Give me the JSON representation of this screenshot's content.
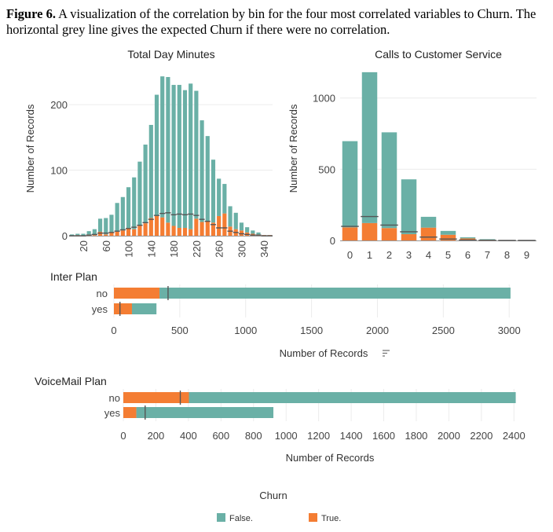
{
  "caption": {
    "label": "Figure 6.",
    "text": " A visualization of the correlation by bin for the four most correlated variables to Churn. The horizontal grey line gives the expected Churn if there were no correlation."
  },
  "colors": {
    "false": "#6ab0a6",
    "true": "#f47d33",
    "expected_line": "#555555"
  },
  "legend": {
    "title": "Churn",
    "items": [
      {
        "label": "False.",
        "color": "#6ab0a6"
      },
      {
        "label": "True.",
        "color": "#f47d33"
      }
    ]
  },
  "chart_data": [
    {
      "id": "total_day_minutes",
      "type": "bar",
      "stacked": true,
      "title": "Total Day Minutes",
      "ylabel": "Number of Records",
      "xlabel": "",
      "ylim": [
        0,
        260
      ],
      "yticks": [
        0,
        100,
        200
      ],
      "xtick_labels": [
        "20",
        "60",
        "100",
        "140",
        "180",
        "220",
        "260",
        "300",
        "340"
      ],
      "x": [
        0,
        10,
        20,
        30,
        40,
        50,
        60,
        70,
        80,
        90,
        100,
        110,
        120,
        130,
        140,
        150,
        160,
        170,
        180,
        190,
        200,
        210,
        220,
        230,
        240,
        250,
        260,
        270,
        280,
        290,
        300,
        310,
        320,
        330,
        340,
        350
      ],
      "series": [
        {
          "name": "False.",
          "values": [
            2,
            2,
            3,
            5,
            9,
            20,
            25,
            26,
            44,
            51,
            62,
            79,
            98,
            120,
            142,
            185,
            215,
            222,
            215,
            218,
            210,
            222,
            195,
            155,
            130,
            96,
            57,
            45,
            31,
            25,
            12,
            8,
            5,
            3,
            0,
            0
          ]
        },
        {
          "name": "True.",
          "values": [
            0,
            1,
            0,
            2,
            1,
            6,
            2,
            6,
            6,
            8,
            12,
            10,
            15,
            19,
            27,
            30,
            28,
            20,
            15,
            12,
            12,
            10,
            26,
            21,
            22,
            20,
            30,
            34,
            14,
            10,
            8,
            5,
            3,
            2,
            1,
            1
          ]
        }
      ],
      "expected": [
        0,
        0,
        0,
        1,
        2,
        4,
        4,
        5,
        7,
        9,
        11,
        13,
        16,
        20,
        25,
        31,
        34,
        35,
        32,
        33,
        32,
        33,
        31,
        25,
        22,
        17,
        12,
        12,
        7,
        5,
        3,
        2,
        1,
        1,
        0,
        0
      ]
    },
    {
      "id": "calls_to_customer_service",
      "type": "bar",
      "stacked": true,
      "title": "Calls to Customer Service",
      "ylabel": "Number of Records",
      "xlabel": "",
      "ylim": [
        0,
        1230
      ],
      "yticks": [
        0,
        500,
        1000
      ],
      "categories": [
        "0",
        "1",
        "2",
        "3",
        "4",
        "5",
        "6",
        "7",
        "8",
        "9"
      ],
      "series": [
        {
          "name": "False.",
          "values": [
            605,
            1059,
            672,
            385,
            76,
            27,
            8,
            4,
            1,
            0
          ]
        },
        {
          "name": "True.",
          "values": [
            92,
            122,
            87,
            44,
            90,
            40,
            14,
            5,
            1,
            2
          ]
        }
      ],
      "expected": [
        99,
        168,
        108,
        61,
        24,
        10,
        3,
        1,
        0,
        0
      ]
    },
    {
      "id": "inter_plan",
      "type": "bar",
      "orientation": "horizontal",
      "stacked": true,
      "title": "Inter Plan",
      "xlabel": "Number of Records",
      "xlim": [
        0,
        3100
      ],
      "xticks": [
        0,
        500,
        1000,
        1500,
        2000,
        2500,
        3000
      ],
      "categories": [
        "no",
        "yes"
      ],
      "series": [
        {
          "name": "False.",
          "values": [
            2664,
            186
          ]
        },
        {
          "name": "True.",
          "values": [
            346,
            137
          ]
        }
      ],
      "expected": [
        411,
        46
      ]
    },
    {
      "id": "voicemail_plan",
      "type": "bar",
      "orientation": "horizontal",
      "stacked": true,
      "title": "VoiceMail Plan",
      "xlabel": "Number of Records",
      "xlim": [
        0,
        2500
      ],
      "xticks": [
        0,
        200,
        400,
        600,
        800,
        1000,
        1200,
        1400,
        1600,
        1800,
        2000,
        2200,
        2400
      ],
      "categories": [
        "no",
        "yes"
      ],
      "series": [
        {
          "name": "False.",
          "values": [
            2008,
            842
          ]
        },
        {
          "name": "True.",
          "values": [
            403,
            80
          ]
        }
      ],
      "expected": [
        350,
        134
      ]
    }
  ]
}
